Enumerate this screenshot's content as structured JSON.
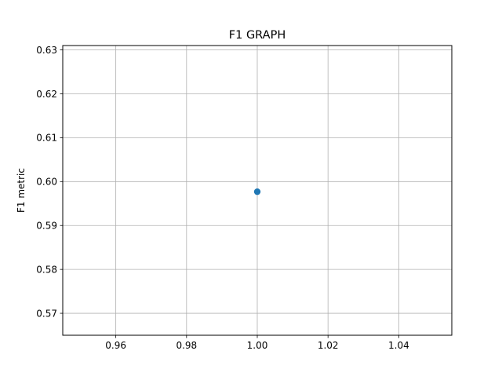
{
  "chart_data": {
    "type": "scatter",
    "title": "F1 GRAPH",
    "xlabel": "",
    "ylabel": "F1 metric",
    "xlim": [
      0.945,
      1.055
    ],
    "ylim": [
      0.565,
      0.631
    ],
    "xticks": [
      0.96,
      0.98,
      1.0,
      1.02,
      1.04
    ],
    "xtick_labels": [
      "0.96",
      "0.98",
      "1.00",
      "1.02",
      "1.04"
    ],
    "yticks": [
      0.57,
      0.58,
      0.59,
      0.6,
      0.61,
      0.62,
      0.63
    ],
    "ytick_labels": [
      "0.57",
      "0.58",
      "0.59",
      "0.60",
      "0.61",
      "0.62",
      "0.63"
    ],
    "grid": true,
    "legend": "none",
    "series": [
      {
        "x": [
          1.0
        ],
        "y": [
          0.5977
        ],
        "color": "#1f77b4",
        "marker": "o"
      }
    ]
  }
}
